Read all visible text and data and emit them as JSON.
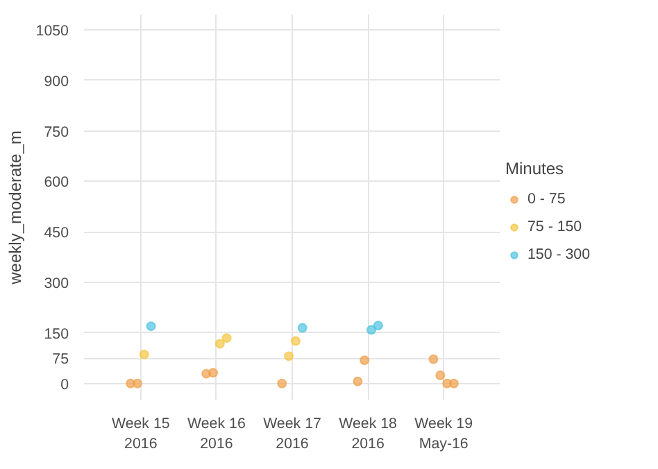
{
  "chart_data": {
    "type": "scatter",
    "ylabel": "weekly_moderate_m",
    "legend_title": "Minutes",
    "categories": [
      "Week 15\n2016",
      "Week 16\n2016",
      "Week 17\n2016",
      "Week 18\n2016",
      "Week 19\nMay-16"
    ],
    "ylim": [
      -50,
      1095
    ],
    "yticks": [
      0,
      75,
      150,
      300,
      450,
      600,
      750,
      900,
      1050
    ],
    "grid": true,
    "legend": "right",
    "marker": "circle",
    "series": [
      {
        "name": "0 - 75",
        "color": "#f0a04b",
        "x": [
          "Week 15\n2016",
          "Week 15\n2016",
          "Week 16\n2016",
          "Week 16\n2016",
          "Week 17\n2016",
          "Week 18\n2016",
          "Week 18\n2016",
          "Week 19\nMay-16",
          "Week 19\nMay-16",
          "Week 19\nMay-16",
          "Week 19\nMay-16"
        ],
        "values": [
          0,
          0,
          29,
          32,
          0,
          6,
          69,
          72,
          24,
          0,
          0
        ]
      },
      {
        "name": "75 - 150",
        "color": "#f5c542",
        "x": [
          "Week 15\n2016",
          "Week 16\n2016",
          "Week 16\n2016",
          "Week 17\n2016",
          "Week 17\n2016"
        ],
        "values": [
          86,
          118,
          135,
          81,
          126
        ]
      },
      {
        "name": "150 - 300",
        "color": "#4ec3e0",
        "x": [
          "Week 15\n2016",
          "Week 17\n2016",
          "Week 18\n2016",
          "Week 18\n2016"
        ],
        "values": [
          170,
          165,
          159,
          172
        ]
      }
    ]
  }
}
